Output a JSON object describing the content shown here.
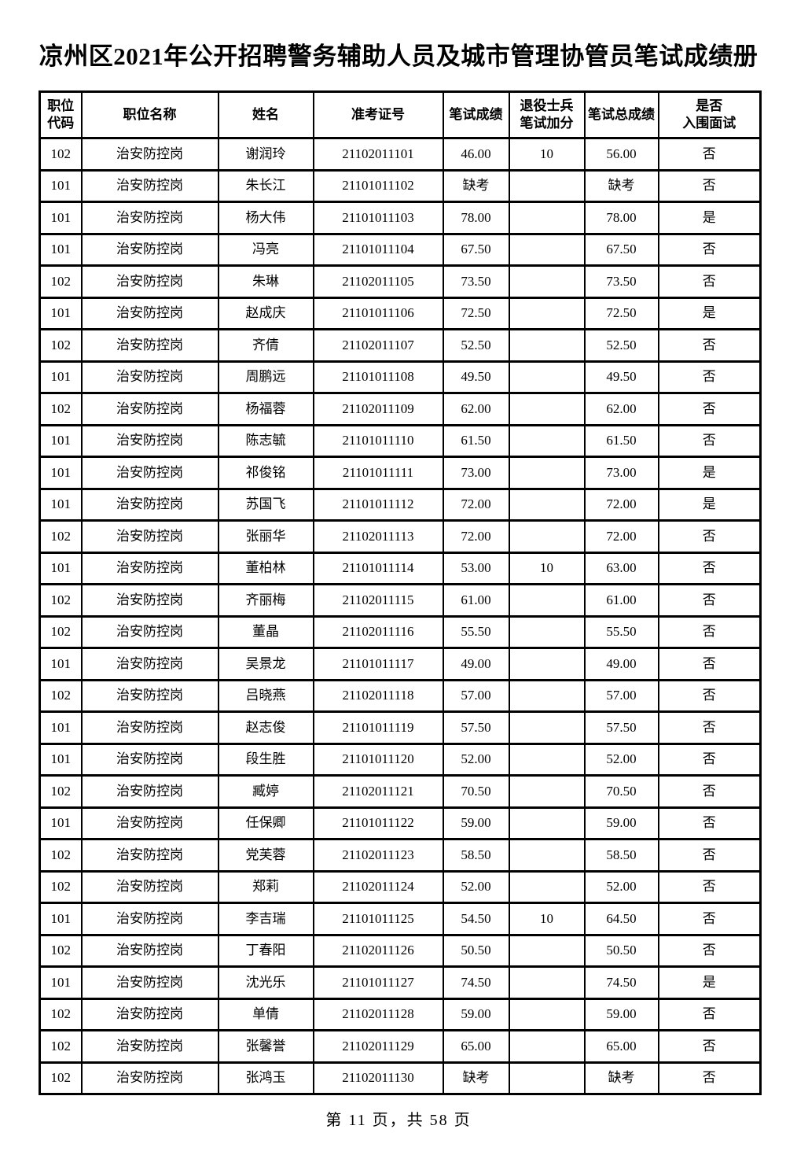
{
  "page": {
    "title": "凉州区2021年公开招聘警务辅助人员及城市管理协管员笔试成绩册",
    "footer": "第 11 页，共 58 页",
    "page_number": "11",
    "total_pages": "58"
  },
  "colors": {
    "background": "#ffffff",
    "text": "#000000",
    "border": "#000000"
  },
  "table": {
    "columns": [
      {
        "key": "code",
        "label": "职位\n代码"
      },
      {
        "key": "position",
        "label": "职位名称"
      },
      {
        "key": "name",
        "label": "姓名"
      },
      {
        "key": "ticket",
        "label": "准考证号"
      },
      {
        "key": "score",
        "label": "笔试成绩"
      },
      {
        "key": "bonus",
        "label": "退役士兵\n笔试加分"
      },
      {
        "key": "total",
        "label": "笔试总成绩"
      },
      {
        "key": "interview",
        "label": "是否\n入围面试"
      }
    ],
    "rows": [
      [
        "102",
        "治安防控岗",
        "谢润玲",
        "21102011101",
        "46.00",
        "10",
        "56.00",
        "否"
      ],
      [
        "101",
        "治安防控岗",
        "朱长江",
        "21101011102",
        "缺考",
        "",
        "缺考",
        "否"
      ],
      [
        "101",
        "治安防控岗",
        "杨大伟",
        "21101011103",
        "78.00",
        "",
        "78.00",
        "是"
      ],
      [
        "101",
        "治安防控岗",
        "冯亮",
        "21101011104",
        "67.50",
        "",
        "67.50",
        "否"
      ],
      [
        "102",
        "治安防控岗",
        "朱琳",
        "21102011105",
        "73.50",
        "",
        "73.50",
        "否"
      ],
      [
        "101",
        "治安防控岗",
        "赵成庆",
        "21101011106",
        "72.50",
        "",
        "72.50",
        "是"
      ],
      [
        "102",
        "治安防控岗",
        "齐倩",
        "21102011107",
        "52.50",
        "",
        "52.50",
        "否"
      ],
      [
        "101",
        "治安防控岗",
        "周鹏远",
        "21101011108",
        "49.50",
        "",
        "49.50",
        "否"
      ],
      [
        "102",
        "治安防控岗",
        "杨福蓉",
        "21102011109",
        "62.00",
        "",
        "62.00",
        "否"
      ],
      [
        "101",
        "治安防控岗",
        "陈志毓",
        "21101011110",
        "61.50",
        "",
        "61.50",
        "否"
      ],
      [
        "101",
        "治安防控岗",
        "祁俊铭",
        "21101011111",
        "73.00",
        "",
        "73.00",
        "是"
      ],
      [
        "101",
        "治安防控岗",
        "苏国飞",
        "21101011112",
        "72.00",
        "",
        "72.00",
        "是"
      ],
      [
        "102",
        "治安防控岗",
        "张丽华",
        "21102011113",
        "72.00",
        "",
        "72.00",
        "否"
      ],
      [
        "101",
        "治安防控岗",
        "董柏林",
        "21101011114",
        "53.00",
        "10",
        "63.00",
        "否"
      ],
      [
        "102",
        "治安防控岗",
        "齐丽梅",
        "21102011115",
        "61.00",
        "",
        "61.00",
        "否"
      ],
      [
        "102",
        "治安防控岗",
        "董晶",
        "21102011116",
        "55.50",
        "",
        "55.50",
        "否"
      ],
      [
        "101",
        "治安防控岗",
        "吴景龙",
        "21101011117",
        "49.00",
        "",
        "49.00",
        "否"
      ],
      [
        "102",
        "治安防控岗",
        "吕晓燕",
        "21102011118",
        "57.00",
        "",
        "57.00",
        "否"
      ],
      [
        "101",
        "治安防控岗",
        "赵志俊",
        "21101011119",
        "57.50",
        "",
        "57.50",
        "否"
      ],
      [
        "101",
        "治安防控岗",
        "段生胜",
        "21101011120",
        "52.00",
        "",
        "52.00",
        "否"
      ],
      [
        "102",
        "治安防控岗",
        "臧婷",
        "21102011121",
        "70.50",
        "",
        "70.50",
        "否"
      ],
      [
        "101",
        "治安防控岗",
        "任保卿",
        "21101011122",
        "59.00",
        "",
        "59.00",
        "否"
      ],
      [
        "102",
        "治安防控岗",
        "党芙蓉",
        "21102011123",
        "58.50",
        "",
        "58.50",
        "否"
      ],
      [
        "102",
        "治安防控岗",
        "郑莉",
        "21102011124",
        "52.00",
        "",
        "52.00",
        "否"
      ],
      [
        "101",
        "治安防控岗",
        "李吉瑞",
        "21101011125",
        "54.50",
        "10",
        "64.50",
        "否"
      ],
      [
        "102",
        "治安防控岗",
        "丁春阳",
        "21102011126",
        "50.50",
        "",
        "50.50",
        "否"
      ],
      [
        "101",
        "治安防控岗",
        "沈光乐",
        "21101011127",
        "74.50",
        "",
        "74.50",
        "是"
      ],
      [
        "102",
        "治安防控岗",
        "单倩",
        "21102011128",
        "59.00",
        "",
        "59.00",
        "否"
      ],
      [
        "102",
        "治安防控岗",
        "张馨誉",
        "21102011129",
        "65.00",
        "",
        "65.00",
        "否"
      ],
      [
        "102",
        "治安防控岗",
        "张鸿玉",
        "21102011130",
        "缺考",
        "",
        "缺考",
        "否"
      ]
    ]
  }
}
